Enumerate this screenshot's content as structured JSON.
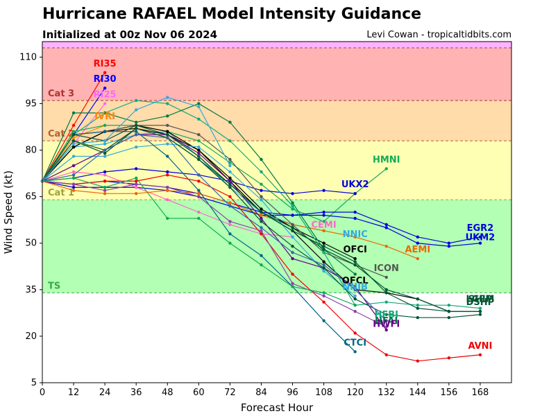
{
  "title": "Hurricane RAFAEL Model Intensity Guidance",
  "subtitle": "Initialized at 00z Nov 06 2024",
  "credit": "Levi Cowan - tropicaltidbits.com",
  "chart_data": {
    "type": "line",
    "xlabel": "Forecast Hour",
    "ylabel": "Wind Speed (kt)",
    "xlim": [
      0,
      180
    ],
    "ylim": [
      5,
      115
    ],
    "xticks": [
      0,
      12,
      24,
      36,
      48,
      60,
      72,
      84,
      96,
      108,
      120,
      132,
      144,
      156,
      168
    ],
    "yticks": [
      5,
      20,
      35,
      50,
      65,
      80,
      95,
      110
    ],
    "category_bands": [
      {
        "label": "TS",
        "y0": 34,
        "y1": 64,
        "color": "#b3ffb3",
        "labelColor": "#33aa44"
      },
      {
        "label": "Cat 1",
        "y0": 64,
        "y1": 83,
        "color": "#ffffb3",
        "labelColor": "#a0a040"
      },
      {
        "label": "Cat 2",
        "y0": 83,
        "y1": 96,
        "color": "#ffdcaa",
        "labelColor": "#b06030"
      },
      {
        "label": "Cat 3",
        "y0": 96,
        "y1": 113,
        "color": "#ffb3b3",
        "labelColor": "#aa3333"
      },
      {
        "label": "",
        "y0": 113,
        "y1": 115,
        "color": "#ffb3ff",
        "labelColor": "#aa33aa"
      }
    ],
    "series": [
      {
        "name": "RI35",
        "color": "#ff0000",
        "x": [
          0,
          12,
          24
        ],
        "y": [
          70,
          88,
          105
        ],
        "label": {
          "x": 24,
          "y": 107,
          "anchor": "middle"
        }
      },
      {
        "name": "RI30",
        "color": "#0000ff",
        "x": [
          0,
          12,
          24
        ],
        "y": [
          70,
          85,
          100
        ],
        "label": {
          "x": 24,
          "y": 102,
          "anchor": "middle"
        }
      },
      {
        "name": "RI25",
        "color": "#ff66ff",
        "x": [
          0,
          12,
          24
        ],
        "y": [
          70,
          82,
          95
        ],
        "label": {
          "x": 24,
          "y": 97,
          "anchor": "middle"
        }
      },
      {
        "name": "IVRI",
        "color": "#ff8800",
        "x": [
          0,
          12,
          24
        ],
        "y": [
          70,
          84,
          88
        ],
        "label": {
          "x": 24,
          "y": 90,
          "anchor": "middle"
        }
      },
      {
        "name": "HMNI",
        "color": "#11aa55",
        "x": [
          0,
          12,
          24,
          36,
          48,
          60,
          72,
          84,
          96,
          108,
          120,
          132
        ],
        "y": [
          70,
          86,
          88,
          88,
          86,
          83,
          76,
          69,
          61,
          57,
          66,
          74
        ],
        "label": {
          "x": 132,
          "y": 76,
          "anchor": "middle"
        }
      },
      {
        "name": "UKX2",
        "color": "#0000dd",
        "x": [
          0,
          12,
          24,
          36,
          48,
          60,
          72,
          84,
          96,
          108,
          120
        ],
        "y": [
          70,
          71,
          73,
          74,
          73,
          72,
          70,
          67,
          66,
          67,
          66
        ],
        "label": {
          "x": 120,
          "y": 68,
          "anchor": "middle"
        }
      },
      {
        "name": "EGR2",
        "color": "#0000dd",
        "x": [
          0,
          12,
          24,
          36,
          48,
          60,
          72,
          84,
          96,
          108,
          120,
          132,
          144,
          156,
          168
        ],
        "y": [
          70,
          69,
          70,
          69,
          68,
          66,
          63,
          60,
          59,
          60,
          60,
          56,
          52,
          50,
          52
        ],
        "label": {
          "x": 168,
          "y": 54,
          "anchor": "middle"
        }
      },
      {
        "name": "UKM2",
        "color": "#0000dd",
        "x": [
          0,
          12,
          24,
          36,
          48,
          60,
          72,
          84,
          96,
          108,
          120,
          132,
          144,
          156,
          168
        ],
        "y": [
          70,
          68,
          68,
          68,
          67,
          65,
          62,
          59,
          59,
          59,
          58,
          55,
          50,
          49,
          50
        ],
        "label": {
          "x": 168,
          "y": 51,
          "anchor": "middle"
        }
      },
      {
        "name": "CEMI",
        "color": "#ff66cc",
        "x": [
          0,
          12,
          24,
          36,
          48,
          60,
          72,
          84,
          96
        ],
        "y": [
          70,
          73,
          72,
          68,
          64,
          60,
          56,
          53,
          52
        ],
        "label": {
          "x": 108,
          "y": 55,
          "anchor": "middle"
        }
      },
      {
        "name": "NNIC",
        "color": "#33aadd",
        "x": [
          0,
          12,
          24,
          36,
          48,
          60,
          72,
          84,
          96,
          108
        ],
        "y": [
          70,
          81,
          82,
          85,
          86,
          78,
          68,
          60,
          56,
          54
        ],
        "label": {
          "x": 120,
          "y": 52,
          "anchor": "middle"
        }
      },
      {
        "name": "AEMI",
        "color": "#ee6600",
        "x": [
          0,
          12,
          24,
          36,
          48,
          60,
          72,
          84,
          96,
          108,
          120,
          132,
          144
        ],
        "y": [
          70,
          67,
          66,
          66,
          67,
          66,
          63,
          59,
          56,
          54,
          52,
          49,
          45
        ],
        "label": {
          "x": 144,
          "y": 47,
          "anchor": "middle"
        }
      },
      {
        "name": "OFCI",
        "color": "#000000",
        "x": [
          0,
          12,
          24,
          36,
          48,
          60,
          72,
          84,
          96,
          108,
          120
        ],
        "y": [
          70,
          81,
          86,
          88,
          86,
          80,
          71,
          61,
          55,
          50,
          45
        ],
        "label": {
          "x": 120,
          "y": 47,
          "anchor": "middle"
        }
      },
      {
        "name": "ICON",
        "color": "#555555",
        "x": [
          0,
          12,
          24,
          36,
          48,
          60,
          72,
          84,
          96,
          108,
          120,
          132
        ],
        "y": [
          70,
          85,
          86,
          88,
          88,
          85,
          77,
          65,
          56,
          47,
          43,
          39
        ],
        "label": {
          "x": 132,
          "y": 41,
          "anchor": "middle"
        }
      },
      {
        "name": "OFCL",
        "color": "#000000",
        "x": [
          0,
          12,
          24,
          36,
          48,
          60,
          72,
          84,
          96,
          108,
          120,
          132,
          144,
          156,
          168
        ],
        "y": [
          70,
          81,
          86,
          87,
          85,
          80,
          70,
          60,
          54,
          44,
          35,
          34,
          32,
          28,
          28
        ],
        "label": {
          "x": 120,
          "y": 37,
          "anchor": "middle"
        }
      },
      {
        "name": "NNIB",
        "color": "#33aadd",
        "x": [
          0,
          12,
          24,
          36,
          48,
          60,
          72,
          84,
          96,
          108,
          120
        ],
        "y": [
          70,
          78,
          78,
          81,
          82,
          81,
          73,
          64,
          52,
          41,
          33
        ],
        "label": {
          "x": 120,
          "y": 35,
          "anchor": "middle"
        }
      },
      {
        "name": "HFBI",
        "color": "#11aa77",
        "x": [
          0,
          12,
          24,
          36,
          48,
          60,
          72,
          84,
          96,
          108,
          120,
          132,
          144,
          156,
          168
        ],
        "y": [
          70,
          85,
          92,
          96,
          95,
          90,
          83,
          73,
          62,
          47,
          30,
          31,
          30,
          30,
          29
        ],
        "label": {
          "x": 132,
          "y": 26,
          "anchor": "middle"
        }
      },
      {
        "name": "HFAI",
        "color": "#007744",
        "x": [
          0,
          12,
          24,
          36,
          48,
          60,
          72,
          84,
          96,
          108,
          120
        ],
        "y": [
          70,
          92,
          92,
          89,
          91,
          95,
          89,
          77,
          63,
          48,
          40
        ],
        "label": {
          "x": 132,
          "y": 24,
          "anchor": "middle"
        }
      },
      {
        "name": "HWFI",
        "color": "#660088",
        "x": [
          0,
          12,
          24,
          36,
          48,
          60,
          72,
          84,
          96,
          108,
          120,
          132
        ],
        "y": [
          70,
          75,
          80,
          85,
          85,
          79,
          70,
          58,
          45,
          42,
          36,
          22
        ],
        "label": {
          "x": 132,
          "y": 23,
          "anchor": "middle"
        }
      },
      {
        "name": "CTCI",
        "color": "#006688",
        "x": [
          0,
          12,
          24,
          36,
          48,
          60,
          72,
          84,
          96,
          108,
          120
        ],
        "y": [
          70,
          85,
          86,
          86,
          78,
          67,
          53,
          46,
          36,
          25,
          15
        ],
        "label": {
          "x": 120,
          "y": 17,
          "anchor": "middle"
        }
      },
      {
        "name": "AVNI",
        "color": "#ee0000",
        "x": [
          0,
          12,
          24,
          36,
          48,
          60,
          72,
          84,
          96,
          108,
          120,
          132,
          144,
          156,
          168
        ],
        "y": [
          70,
          69,
          70,
          70,
          72,
          70,
          65,
          53,
          40,
          31,
          21,
          14,
          12,
          13,
          14
        ],
        "label": {
          "x": 168,
          "y": 16,
          "anchor": "middle"
        }
      },
      {
        "name": "DSHP",
        "color": "#005533",
        "x": [
          0,
          12,
          24,
          36,
          48,
          60,
          72,
          84,
          96,
          108,
          120,
          132,
          144,
          156,
          168
        ],
        "y": [
          70,
          83,
          79,
          87,
          84,
          77,
          69,
          60,
          54,
          49,
          44,
          34,
          29,
          28,
          28
        ],
        "label": {
          "x": 168,
          "y": 30,
          "anchor": "middle"
        }
      },
      {
        "name": "LGEM",
        "color": "#005533",
        "x": [
          0,
          12,
          24,
          36,
          48,
          60,
          72,
          84,
          96,
          108,
          120,
          132,
          144,
          156,
          168
        ],
        "y": [
          70,
          83,
          80,
          87,
          84,
          77,
          68,
          57,
          49,
          42,
          32,
          27,
          26,
          26,
          27
        ],
        "label": {
          "x": 168,
          "y": 31,
          "anchor": "middle"
        }
      },
      {
        "name": "SHIP",
        "color": "#005533",
        "x": [
          0,
          12,
          24,
          36,
          48,
          60,
          72,
          84,
          96,
          108,
          120,
          132,
          144,
          156,
          168
        ],
        "y": [
          70,
          85,
          83,
          88,
          85,
          78,
          69,
          60,
          55,
          48,
          43,
          35,
          32,
          28,
          28
        ],
        "label": {
          "x": 168,
          "y": 31,
          "anchor": "middle"
        }
      },
      {
        "name": "",
        "color": "#3366aa",
        "x": [
          0,
          12,
          24,
          36,
          48,
          60,
          72,
          84,
          96,
          108,
          120,
          132
        ],
        "y": [
          70,
          72,
          80,
          85,
          84,
          72,
          62,
          55,
          47,
          43,
          35,
          25
        ],
        "label": null
      },
      {
        "name": "",
        "color": "#8844aa",
        "x": [
          0,
          12,
          24,
          36,
          48,
          60,
          72,
          84,
          96,
          108,
          120,
          132
        ],
        "y": [
          70,
          69,
          67,
          69,
          68,
          65,
          57,
          54,
          37,
          33,
          28,
          23
        ],
        "label": null
      },
      {
        "name": "",
        "color": "#11aa55",
        "x": [
          0,
          12,
          24,
          36,
          48,
          60,
          72,
          84,
          96,
          108,
          120
        ],
        "y": [
          70,
          71,
          68,
          71,
          58,
          58,
          50,
          43,
          36,
          34,
          30
        ],
        "label": null
      },
      {
        "name": "",
        "color": "#33aadd",
        "x": [
          0,
          12,
          24,
          36,
          48,
          60,
          72
        ],
        "y": [
          70,
          82,
          83,
          93,
          97,
          94,
          75
        ],
        "label": null
      }
    ]
  }
}
